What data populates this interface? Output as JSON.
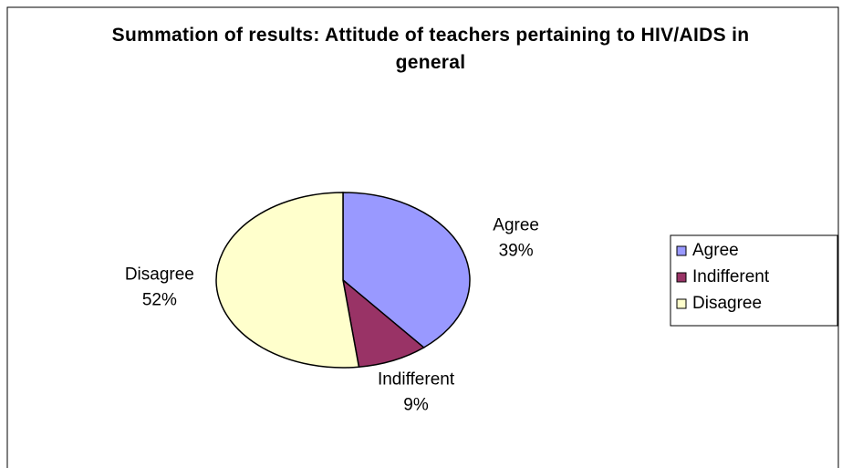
{
  "chart_data": {
    "type": "pie",
    "title": "Summation of results:  Attitude of teachers pertaining to HIV/AIDS in general",
    "categories": [
      "Agree",
      "Indifferent",
      "Disagree"
    ],
    "values": [
      39,
      9,
      52
    ],
    "value_labels": [
      "39%",
      "9%",
      "52%"
    ],
    "colors": [
      "#9999ff",
      "#993366",
      "#ffffcc"
    ],
    "legend": "right"
  }
}
